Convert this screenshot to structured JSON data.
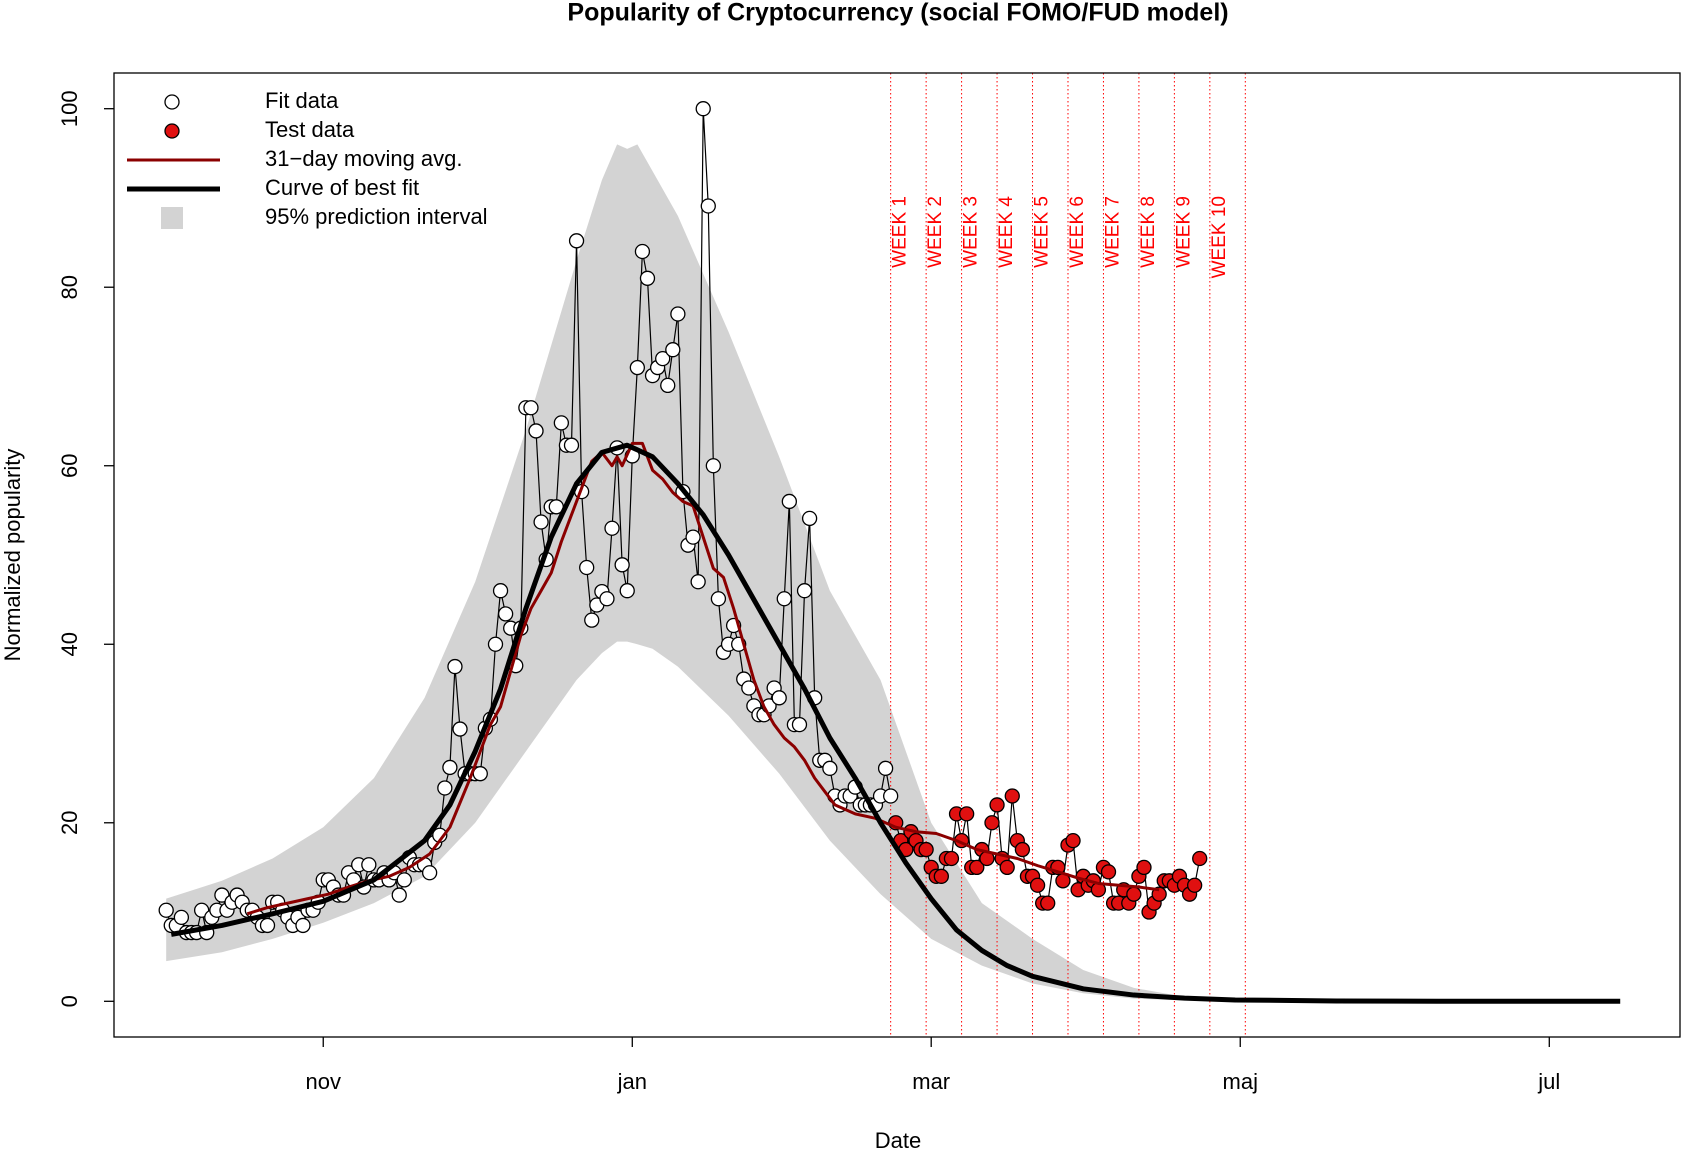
{
  "chart_data": {
    "type": "line",
    "title": "Popularity of Cryptocurrency (social FOMO/FUD model)",
    "x_label": "Date",
    "y_label": "Normalized popularity",
    "xlim": [
      -41.3,
      267.8
    ],
    "ylim": [
      -4,
      104
    ],
    "xticks": [
      {
        "value": 0,
        "label": "nov"
      },
      {
        "value": 61,
        "label": "jan"
      },
      {
        "value": 120,
        "label": "mar"
      },
      {
        "value": 181,
        "label": "maj"
      },
      {
        "value": 242,
        "label": "jul"
      }
    ],
    "yticks": [
      0,
      20,
      40,
      60,
      80,
      100
    ],
    "week_lines": [
      112,
      119,
      126,
      133,
      140,
      147,
      154,
      161,
      168,
      175,
      182
    ],
    "week_labels": [
      "WEEK 1",
      "WEEK 2",
      "WEEK 3",
      "WEEK 4",
      "WEEK 5",
      "WEEK 6",
      "WEEK 7",
      "WEEK 8",
      "WEEK 9",
      "WEEK 10"
    ],
    "week_color": "#ff0000",
    "series": [
      {
        "name": "Fit data",
        "kind": "points",
        "color": "#000000",
        "fill": "#ffffff",
        "x": [
          -31,
          -30,
          -29,
          -28,
          -27,
          -26,
          -25,
          -24,
          -23,
          -22,
          -21,
          -20,
          -19,
          -18,
          -17,
          -16,
          -15,
          -14,
          -13,
          -12,
          -11,
          -10,
          -9,
          -8,
          -7,
          -6,
          -5,
          -4,
          -3,
          -2,
          -1,
          0,
          1,
          2,
          3,
          4,
          5,
          6,
          7,
          8,
          9,
          10,
          11,
          12,
          13,
          14,
          15,
          16,
          17,
          18,
          19,
          20,
          21,
          22,
          23,
          24,
          25,
          26,
          27,
          28,
          29,
          30,
          31,
          32,
          33,
          34,
          35,
          36,
          37,
          38,
          39,
          40,
          41,
          42,
          43,
          44,
          45,
          46,
          47,
          48,
          49,
          50,
          51,
          52,
          53,
          54,
          55,
          56,
          57,
          58,
          59,
          60,
          61,
          62,
          63,
          64,
          65,
          66,
          67,
          68,
          69,
          70,
          71,
          72,
          73,
          74,
          75,
          76,
          77,
          78,
          79,
          80,
          81,
          82,
          83,
          84,
          85,
          86,
          87,
          88,
          89,
          90,
          91,
          92,
          93,
          94,
          95,
          96,
          97,
          98,
          99,
          100,
          101,
          102,
          103,
          104,
          105,
          106,
          107,
          108,
          109,
          110,
          111,
          112
        ],
        "values": [
          10.2,
          8.5,
          8.5,
          9.4,
          7.7,
          7.7,
          7.7,
          10.2,
          7.7,
          9.4,
          10.2,
          11.9,
          10.2,
          11.1,
          11.9,
          11.1,
          10.2,
          10.2,
          9.4,
          8.5,
          8.5,
          11.1,
          11.1,
          10.2,
          9.4,
          8.5,
          9.4,
          8.5,
          10.2,
          10.2,
          11.1,
          13.6,
          13.6,
          12.8,
          11.9,
          11.9,
          14.4,
          13.6,
          15.3,
          12.8,
          15.3,
          13.6,
          13.6,
          14.4,
          13.6,
          14.4,
          11.9,
          13.6,
          16.1,
          15.3,
          15.3,
          15.3,
          14.4,
          17.8,
          18.6,
          23.9,
          26.2,
          37.5,
          30.5,
          25.5,
          25.5,
          25.5,
          25.5,
          30.6,
          31.6,
          40.0,
          46.0,
          43.4,
          41.8,
          37.6,
          41.8,
          66.5,
          66.5,
          63.9,
          53.7,
          49.5,
          55.4,
          55.4,
          64.8,
          62.3,
          62.3,
          85.2,
          57.1,
          48.6,
          42.7,
          44.4,
          45.9,
          45.1,
          53.0,
          62.0,
          48.9,
          46.0,
          61.1,
          71.0,
          84.0,
          81.0,
          70.1,
          71.0,
          72.0,
          69.0,
          73.0,
          77.0,
          57.1,
          51.1,
          52.0,
          47.0,
          100,
          89.1,
          60.0,
          45.1,
          39.1,
          40.0,
          42.1,
          40.0,
          36.1,
          35.1,
          33.1,
          32.1,
          32.1,
          33.1,
          35.1,
          34.0,
          45.1,
          56.0,
          31.0,
          31.0,
          46.0,
          54.1,
          34.0,
          27.0,
          27.0,
          26.1,
          23.0,
          22.0,
          23.0,
          23.0,
          24.0,
          22.0,
          22.0,
          22.0,
          22.0,
          23.0,
          26.1,
          23.0
        ]
      },
      {
        "name": "Test data",
        "kind": "points",
        "color": "#000000",
        "fill": "#e01010",
        "x": [
          113,
          114,
          115,
          116,
          117,
          118,
          119,
          120,
          121,
          122,
          123,
          124,
          125,
          126,
          127,
          128,
          129,
          130,
          131,
          132,
          133,
          134,
          135,
          136,
          137,
          138,
          139,
          140,
          141,
          142,
          143,
          144,
          145,
          146,
          147,
          148,
          149,
          150,
          151,
          152,
          153,
          154,
          155,
          156,
          157,
          158,
          159,
          160,
          161,
          162,
          163,
          164,
          165,
          166,
          167,
          168,
          169,
          170,
          171,
          172,
          173
        ],
        "values": [
          20.0,
          18.0,
          17.0,
          19.0,
          18.0,
          17.0,
          17.0,
          15.0,
          14.0,
          14.0,
          16.0,
          16.0,
          21.0,
          18.0,
          21.0,
          15.0,
          15.0,
          17.0,
          16.0,
          20.0,
          22.0,
          16.0,
          15.0,
          23.0,
          18.0,
          17.0,
          14.0,
          14.0,
          13.0,
          11.0,
          11.0,
          15.0,
          15.0,
          13.5,
          17.5,
          18.0,
          12.5,
          14.0,
          13.0,
          13.5,
          12.5,
          15.0,
          14.5,
          11.0,
          11.0,
          12.5,
          11.0,
          12.0,
          14.0,
          15.0,
          10.0,
          11.0,
          12.0,
          13.5,
          13.5,
          13.0,
          14.0,
          13.0,
          12.0,
          13.0,
          16.0
        ]
      },
      {
        "name": "31−day moving avg.",
        "kind": "line",
        "color": "#8b0000",
        "width": 3,
        "x": [
          -15,
          -11,
          -7,
          -3,
          1,
          5,
          9,
          13,
          17,
          21,
          25,
          29,
          31,
          33,
          35,
          37,
          39,
          41,
          43,
          45,
          47,
          49,
          51,
          53,
          55,
          57,
          58,
          59,
          61,
          63,
          65,
          67,
          69,
          71,
          73,
          75,
          77,
          79,
          81,
          83,
          85,
          87,
          89,
          91,
          93,
          95,
          97,
          99,
          101,
          105,
          109,
          113,
          117,
          121,
          125,
          129,
          133,
          137,
          141,
          145,
          149,
          153,
          157,
          161,
          165
        ],
        "values": [
          9.8,
          10.5,
          11.0,
          11.5,
          12.0,
          12.8,
          13.5,
          14.0,
          15.0,
          16.5,
          19.5,
          25.0,
          28.0,
          31.0,
          33.0,
          37.0,
          41.0,
          44.0,
          46.0,
          48.0,
          51.5,
          54.5,
          57.5,
          60.5,
          61.5,
          60.0,
          61.0,
          60.0,
          62.5,
          62.5,
          59.5,
          58.5,
          57.0,
          56.0,
          55.5,
          52.0,
          48.5,
          47.5,
          44.0,
          40.0,
          36.0,
          33.0,
          31.0,
          29.5,
          28.5,
          27.0,
          25.0,
          23.5,
          22.0,
          21.0,
          20.5,
          19.5,
          19.0,
          18.8,
          18.0,
          17.0,
          16.5,
          16.0,
          15.2,
          14.5,
          13.8,
          13.2,
          13.0,
          12.8,
          12.5
        ]
      },
      {
        "name": "Curve of best fit",
        "kind": "line",
        "color": "#000000",
        "width": 5,
        "x": [
          -30,
          -20,
          -10,
          0,
          10,
          20,
          25,
          30,
          35,
          40,
          45,
          50,
          55,
          60,
          65,
          70,
          75,
          80,
          85,
          90,
          95,
          100,
          105,
          110,
          115,
          120,
          125,
          130,
          135,
          140,
          150,
          160,
          170,
          180,
          200,
          220,
          240,
          256
        ],
        "values": [
          7.5,
          8.5,
          9.8,
          11.2,
          13.6,
          18,
          22,
          28,
          35,
          44,
          52,
          58,
          61.5,
          62.3,
          61,
          58,
          54.5,
          50,
          45,
          40,
          35,
          29.5,
          25,
          20,
          15.5,
          11.5,
          8,
          5.7,
          4,
          2.8,
          1.4,
          0.7,
          0.35,
          0.15,
          0.04,
          0.01,
          0,
          0
        ]
      },
      {
        "name": "95% prediction interval",
        "kind": "band",
        "color": "#d3d3d3",
        "x": [
          -31,
          -20,
          -10,
          0,
          10,
          20,
          30,
          40,
          50,
          55,
          58,
          60,
          62,
          65,
          70,
          80,
          90,
          100,
          110,
          120,
          130,
          140,
          150,
          160,
          170,
          180
        ],
        "upper": [
          11.5,
          13.5,
          16,
          19.5,
          25,
          34,
          47,
          64,
          83,
          92,
          96,
          95.5,
          96,
          93,
          88,
          75,
          61,
          46,
          36,
          20,
          11,
          7,
          3.5,
          1.5,
          0.5,
          0
        ],
        "lower": [
          4.5,
          5.5,
          7,
          8.8,
          11,
          14,
          20,
          28,
          36,
          39,
          40.3,
          40.3,
          40,
          39.5,
          37.5,
          32,
          25.5,
          18,
          12,
          7,
          4,
          2,
          0.9,
          0.3,
          0.1,
          0
        ]
      }
    ]
  }
}
